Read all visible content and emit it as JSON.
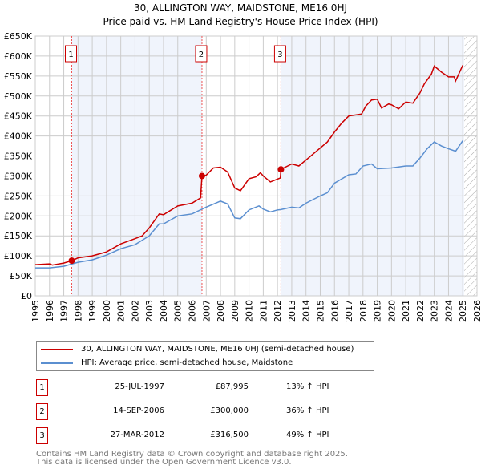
{
  "chart_data": {
    "type": "line",
    "title": "30, ALLINGTON WAY, MAIDSTONE, ME16 0HJ",
    "subtitle": "Price paid vs. HM Land Registry's House Price Index (HPI)",
    "xlim": [
      1995,
      2026
    ],
    "ylim": [
      0,
      650000
    ],
    "y_ticks": [
      "£0",
      "£50K",
      "£100K",
      "£150K",
      "£200K",
      "£250K",
      "£300K",
      "£350K",
      "£400K",
      "£450K",
      "£500K",
      "£550K",
      "£600K",
      "£650K"
    ],
    "x_ticks": [
      "1995",
      "1996",
      "1997",
      "1998",
      "1999",
      "2000",
      "2001",
      "2002",
      "2003",
      "2004",
      "2005",
      "2006",
      "2007",
      "2008",
      "2009",
      "2010",
      "2011",
      "2012",
      "2013",
      "2014",
      "2015",
      "2016",
      "2017",
      "2018",
      "2019",
      "2020",
      "2021",
      "2022",
      "2023",
      "2024",
      "2025",
      "2026"
    ],
    "grid": true,
    "series": [
      {
        "name": "30, ALLINGTON WAY, MAIDSTONE, ME16 0HJ (semi-detached house)",
        "color": "#cc0000",
        "points": [
          [
            1995,
            78
          ],
          [
            1996,
            80
          ],
          [
            1996.2,
            77
          ],
          [
            1997,
            82
          ],
          [
            1997.56,
            88
          ],
          [
            1998,
            95
          ],
          [
            1999,
            100
          ],
          [
            2000,
            110
          ],
          [
            2001,
            130
          ],
          [
            2002,
            143
          ],
          [
            2002.5,
            150
          ],
          [
            2003,
            170
          ],
          [
            2003.7,
            205
          ],
          [
            2004,
            203
          ],
          [
            2005,
            225
          ],
          [
            2006,
            232
          ],
          [
            2006.6,
            245
          ],
          [
            2006.7,
            300
          ],
          [
            2007,
            302
          ],
          [
            2007.5,
            320
          ],
          [
            2008,
            322
          ],
          [
            2008.5,
            310
          ],
          [
            2009,
            270
          ],
          [
            2009.4,
            263
          ],
          [
            2010,
            293
          ],
          [
            2010.5,
            298
          ],
          [
            2010.8,
            308
          ],
          [
            2011,
            300
          ],
          [
            2011.5,
            285
          ],
          [
            2012.2,
            295
          ],
          [
            2012.24,
            316.5
          ],
          [
            2013,
            330
          ],
          [
            2013.5,
            325
          ],
          [
            2014,
            340
          ],
          [
            2015,
            370
          ],
          [
            2015.5,
            385
          ],
          [
            2016,
            410
          ],
          [
            2016.5,
            432
          ],
          [
            2017,
            450
          ],
          [
            2017.9,
            455
          ],
          [
            2018.2,
            475
          ],
          [
            2018.6,
            490
          ],
          [
            2019,
            492
          ],
          [
            2019.3,
            470
          ],
          [
            2019.8,
            480
          ],
          [
            2020,
            478
          ],
          [
            2020.5,
            468
          ],
          [
            2021,
            485
          ],
          [
            2021.5,
            482
          ],
          [
            2022,
            508
          ],
          [
            2022.3,
            530
          ],
          [
            2022.8,
            555
          ],
          [
            2023,
            575
          ],
          [
            2023.5,
            560
          ],
          [
            2024,
            548
          ],
          [
            2024.4,
            548
          ],
          [
            2024.5,
            538
          ],
          [
            2025,
            577
          ]
        ]
      },
      {
        "name": "HPI: Average price, semi-detached house, Maidstone",
        "color": "#5b8fd0",
        "points": [
          [
            1995,
            70
          ],
          [
            1996,
            70
          ],
          [
            1997,
            74
          ],
          [
            1998,
            84
          ],
          [
            1999,
            90
          ],
          [
            2000,
            102
          ],
          [
            2001,
            118
          ],
          [
            2002,
            128
          ],
          [
            2003,
            150
          ],
          [
            2003.7,
            180
          ],
          [
            2004,
            180
          ],
          [
            2005,
            200
          ],
          [
            2006,
            205
          ],
          [
            2007,
            222
          ],
          [
            2008,
            237
          ],
          [
            2008.5,
            230
          ],
          [
            2009,
            195
          ],
          [
            2009.4,
            193
          ],
          [
            2010,
            215
          ],
          [
            2010.7,
            225
          ],
          [
            2011,
            217
          ],
          [
            2011.5,
            210
          ],
          [
            2012,
            215
          ],
          [
            2012.24,
            216
          ],
          [
            2013,
            222
          ],
          [
            2013.5,
            220
          ],
          [
            2014,
            232
          ],
          [
            2015,
            250
          ],
          [
            2015.5,
            258
          ],
          [
            2016,
            282
          ],
          [
            2017,
            303
          ],
          [
            2017.5,
            305
          ],
          [
            2018,
            325
          ],
          [
            2018.6,
            330
          ],
          [
            2019,
            318
          ],
          [
            2020,
            320
          ],
          [
            2021,
            325
          ],
          [
            2021.5,
            325
          ],
          [
            2022,
            345
          ],
          [
            2022.5,
            368
          ],
          [
            2023,
            385
          ],
          [
            2023.5,
            375
          ],
          [
            2024,
            368
          ],
          [
            2024.5,
            362
          ],
          [
            2025,
            388
          ]
        ]
      }
    ],
    "sales": [
      {
        "label": "1",
        "x": 1997.56,
        "price": 87995
      },
      {
        "label": "2",
        "x": 2006.7,
        "price": 300000
      },
      {
        "label": "3",
        "x": 2012.24,
        "price": 316500
      }
    ],
    "forecast_start": 2025.1,
    "legend_placement": "below"
  },
  "header": {
    "title": "30, ALLINGTON WAY, MAIDSTONE, ME16 0HJ",
    "subtitle": "Price paid vs. HM Land Registry's House Price Index (HPI)"
  },
  "legend": {
    "property": "30, ALLINGTON WAY, MAIDSTONE, ME16 0HJ (semi-detached house)",
    "hpi": "HPI: Average price, semi-detached house, Maidstone"
  },
  "sales": [
    {
      "num": "1",
      "date": "25-JUL-1997",
      "price": "£87,995",
      "hpi": "13% ↑ HPI"
    },
    {
      "num": "2",
      "date": "14-SEP-2006",
      "price": "£300,000",
      "hpi": "36% ↑ HPI"
    },
    {
      "num": "3",
      "date": "27-MAR-2012",
      "price": "£316,500",
      "hpi": "49% ↑ HPI"
    }
  ],
  "footer": {
    "line1": "Contains HM Land Registry data © Crown copyright and database right 2025.",
    "line2": "This data is licensed under the Open Government Licence v3.0."
  }
}
